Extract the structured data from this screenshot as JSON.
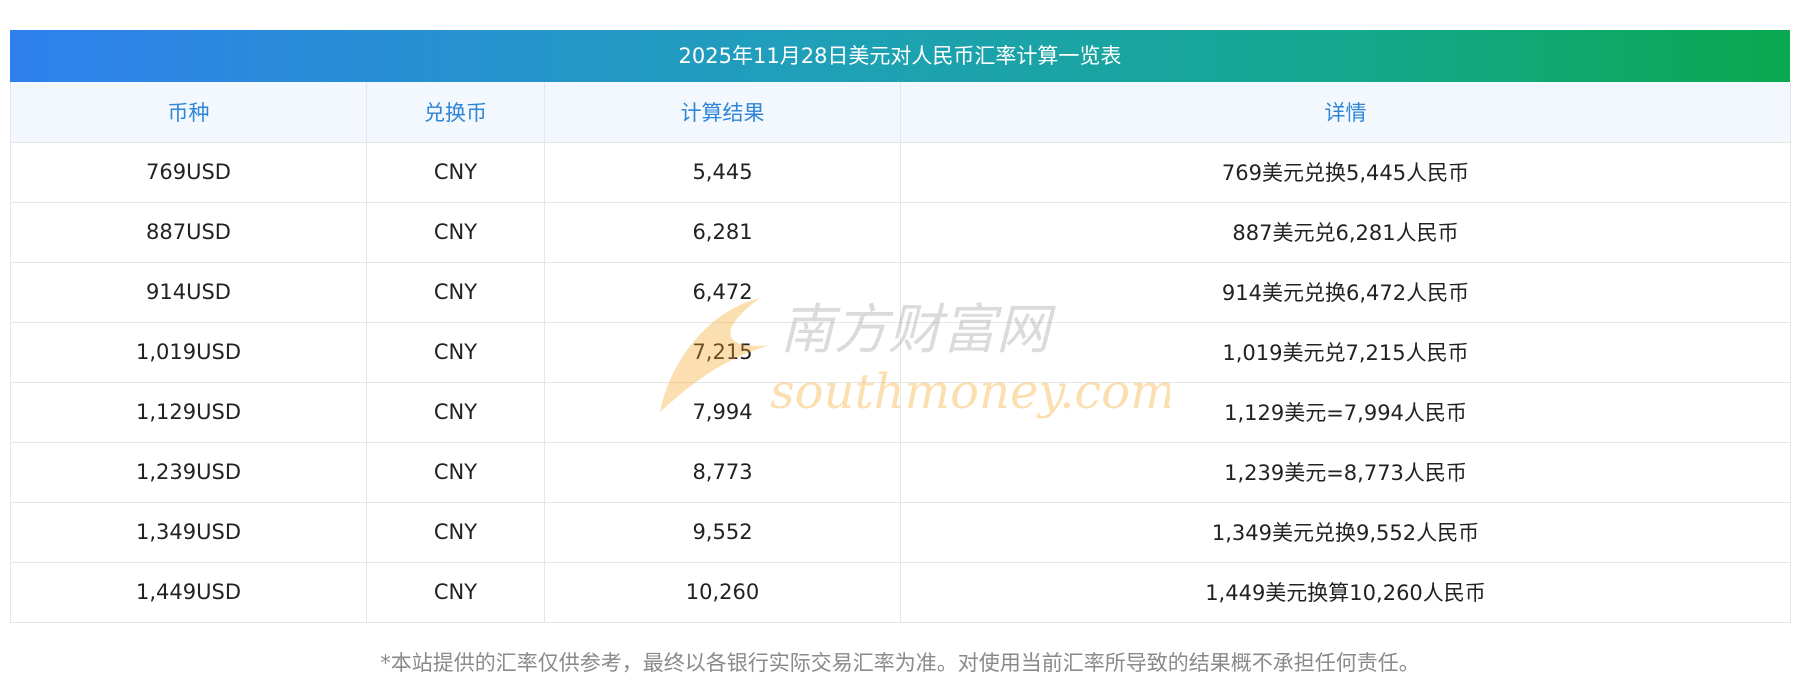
{
  "title": "2025年11月28日美元对人民币汇率计算一览表",
  "headers": [
    "币种",
    "兑换币",
    "计算结果",
    "详情"
  ],
  "rows": [
    [
      "769USD",
      "CNY",
      "5,445",
      "769美元兑换5,445人民币"
    ],
    [
      "887USD",
      "CNY",
      "6,281",
      "887美元兑6,281人民币"
    ],
    [
      "914USD",
      "CNY",
      "6,472",
      "914美元兑换6,472人民币"
    ],
    [
      "1,019USD",
      "CNY",
      "7,215",
      "1,019美元兑7,215人民币"
    ],
    [
      "1,129USD",
      "CNY",
      "7,994",
      "1,129美元=7,994人民币"
    ],
    [
      "1,239USD",
      "CNY",
      "8,773",
      "1,239美元=8,773人民币"
    ],
    [
      "1,349USD",
      "CNY",
      "9,552",
      "1,349美元兑换9,552人民币"
    ],
    [
      "1,449USD",
      "CNY",
      "10,260",
      "1,449美元换算10,260人民币"
    ]
  ],
  "watermark": {
    "cn": "南方财富网",
    "en": "southmoney.com"
  },
  "footnote": "*本站提供的汇率仅供参考，最终以各银行实际交易汇率为准。对使用当前汇率所导致的结果概不承担任何责任。",
  "colors": {
    "header_text": "#2f86d6",
    "gradient_start": "#2f80ed",
    "gradient_end": "#0aa84f",
    "watermark": "#f5a623"
  }
}
